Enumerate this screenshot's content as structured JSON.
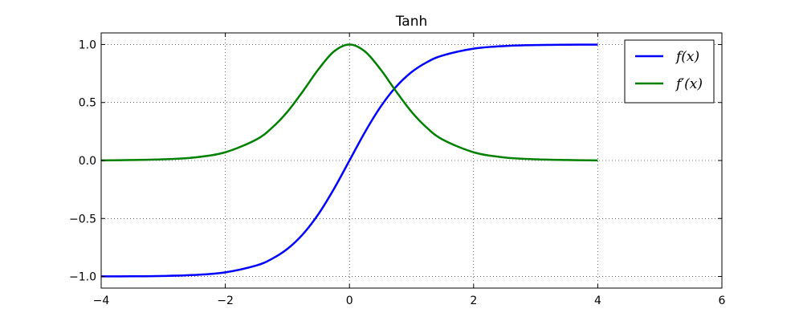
{
  "chart_data": {
    "type": "line",
    "title": "Tanh",
    "xlabel": "",
    "ylabel": "",
    "xlim": [
      -4,
      6
    ],
    "ylim": [
      -1.1,
      1.1
    ],
    "xticks": [
      -4,
      -2,
      0,
      2,
      4,
      6
    ],
    "xtick_labels": [
      "−4",
      "−2",
      "0",
      "2",
      "4",
      "6"
    ],
    "yticks": [
      -1.0,
      -0.5,
      0.0,
      0.5,
      1.0
    ],
    "ytick_labels": [
      "−1.0",
      "−0.5",
      "0.0",
      "0.5",
      "1.0"
    ],
    "grid": true,
    "legend_position": "top-right",
    "series": [
      {
        "name": "f(x)",
        "color": "#0000ff",
        "x": [
          -4,
          -3.5,
          -3,
          -2.5,
          -2,
          -1.5,
          -1.25,
          -1,
          -0.75,
          -0.5,
          -0.25,
          0,
          0.25,
          0.5,
          0.75,
          1,
          1.25,
          1.5,
          2,
          2.5,
          3,
          3.5,
          4
        ],
        "y": [
          -0.999,
          -0.998,
          -0.995,
          -0.987,
          -0.964,
          -0.905,
          -0.848,
          -0.762,
          -0.635,
          -0.462,
          -0.245,
          0.0,
          0.245,
          0.462,
          0.635,
          0.762,
          0.848,
          0.905,
          0.964,
          0.987,
          0.995,
          0.998,
          0.999
        ]
      },
      {
        "name": "f′(x)",
        "color": "#008000",
        "x": [
          -4,
          -3.5,
          -3,
          -2.5,
          -2,
          -1.5,
          -1.25,
          -1,
          -0.75,
          -0.5,
          -0.25,
          0,
          0.25,
          0.5,
          0.75,
          1,
          1.25,
          1.5,
          2,
          2.5,
          3,
          3.5,
          4
        ],
        "y": [
          0.001,
          0.004,
          0.01,
          0.026,
          0.071,
          0.181,
          0.281,
          0.42,
          0.597,
          0.786,
          0.94,
          1.0,
          0.94,
          0.786,
          0.597,
          0.42,
          0.281,
          0.181,
          0.071,
          0.026,
          0.01,
          0.004,
          0.001
        ]
      }
    ]
  }
}
